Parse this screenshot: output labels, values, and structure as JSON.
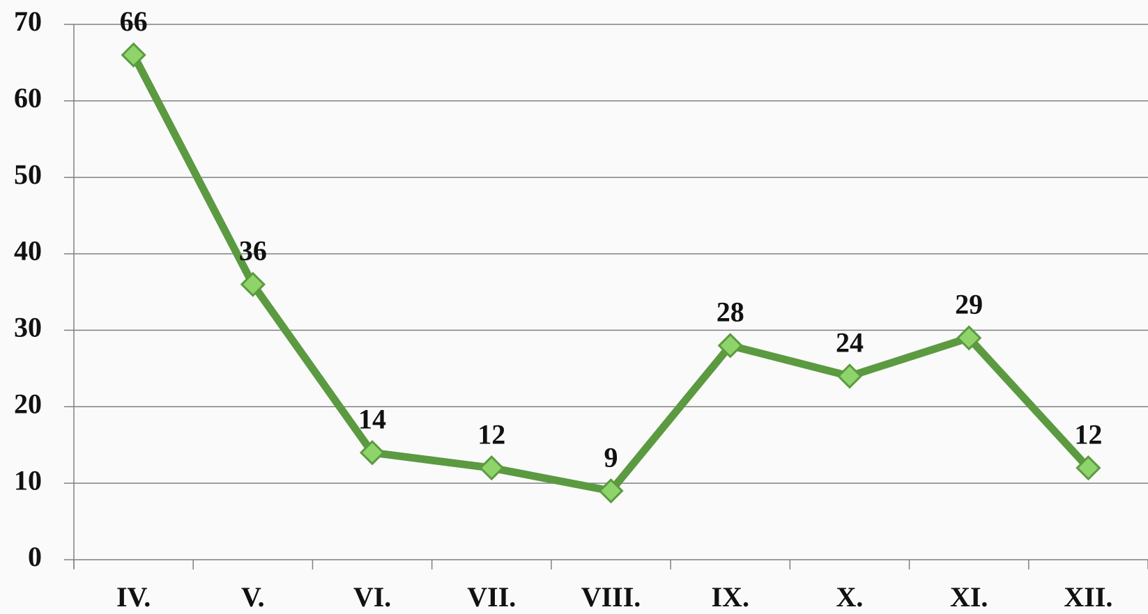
{
  "chart_data": {
    "type": "line",
    "categories": [
      "IV.",
      "V.",
      "VI.",
      "VII.",
      "VIII.",
      "IX.",
      "X.",
      "XI.",
      "XII."
    ],
    "values": [
      66,
      36,
      14,
      12,
      9,
      28,
      24,
      29,
      12
    ],
    "color": "#5b9a41",
    "marker_color": "#8fd46a",
    "ylim": [
      0,
      70
    ],
    "yticks": [
      0,
      10,
      20,
      30,
      40,
      50,
      60,
      70
    ],
    "grid": true
  }
}
